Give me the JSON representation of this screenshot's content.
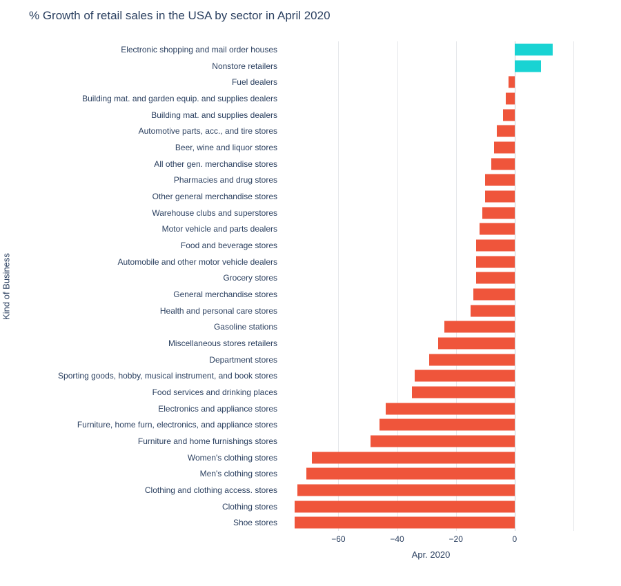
{
  "chart_data": {
    "type": "bar",
    "orientation": "horizontal",
    "title": "% Growth of retail sales in the USA by sector in April 2020",
    "xlabel": "Apr. 2020",
    "ylabel": "Kind of Business",
    "xlim": [
      -77,
      20
    ],
    "xticks": [
      -60,
      -40,
      -20,
      0
    ],
    "gridlines": [
      -60,
      -40,
      -20,
      0,
      20
    ],
    "grid": true,
    "legend": "none",
    "positive_color": "#19d3d3",
    "negative_color": "#ef553b",
    "categories": [
      "Electronic shopping and mail order houses",
      "Nonstore retailers",
      "Fuel dealers",
      "Building mat. and garden equip. and supplies dealers",
      "Building mat. and supplies dealers",
      "Automotive parts, acc., and tire stores",
      "Beer, wine and liquor stores",
      "All other gen. merchandise stores",
      "Pharmacies and drug stores",
      "Other general merchandise stores",
      "Warehouse clubs and superstores",
      "Motor vehicle and parts dealers",
      "Food and beverage stores",
      "Automobile and other motor vehicle dealers",
      "Grocery stores",
      "General merchandise stores",
      "Health and personal care stores",
      "Gasoline stations",
      "Miscellaneous stores retailers",
      "Department stores",
      "Sporting goods, hobby, musical instrument, and book stores",
      "Food services and drinking places",
      "Electronics and appliance stores",
      "Furniture, home furn, electronics, and appliance stores",
      "Furniture and home furnishings stores",
      "Women's clothing stores",
      "Men's clothing stores",
      "Clothing and clothing access. stores",
      "Clothing stores",
      "Shoe stores"
    ],
    "values": [
      13,
      9,
      -2,
      -3,
      -4,
      -6,
      -7,
      -8,
      -10,
      -10,
      -11,
      -12,
      -13,
      -13,
      -13,
      -14,
      -15,
      -24,
      -26,
      -29,
      -34,
      -35,
      -44,
      -46,
      -49,
      -69,
      -71,
      -74,
      -75,
      -75
    ]
  }
}
